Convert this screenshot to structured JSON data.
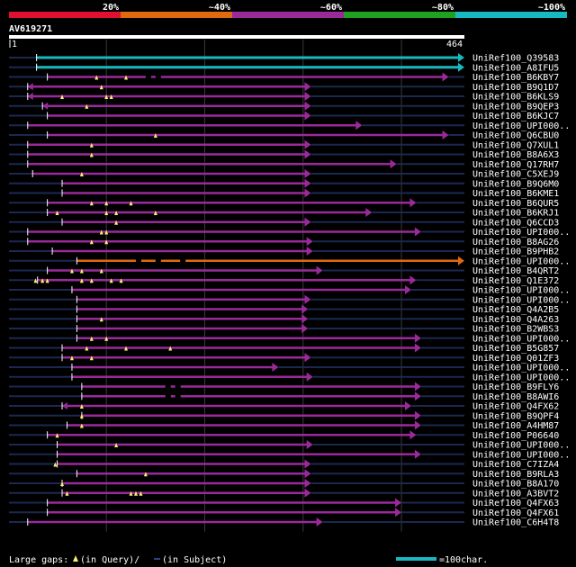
{
  "chart_data": {
    "type": "alignment",
    "query_id": "AV619271",
    "query_start": "1",
    "query_end": "464",
    "query_length": 464,
    "identity_legend": [
      {
        "label": "20%",
        "color": "#e01030"
      },
      {
        "label": "~40%",
        "color": "#e06a10"
      },
      {
        "label": "~60%",
        "color": "#9a2a9a"
      },
      {
        "label": "~80%",
        "color": "#20a020"
      },
      {
        "label": "~100%",
        "color": "#18b8c0"
      }
    ],
    "hits": [
      {
        "name": "UniRef100_Q39583",
        "start": 29,
        "end": 464,
        "color": "#18b8c0",
        "arrow_left": false,
        "gaps": [],
        "sgaps": []
      },
      {
        "name": "UniRef100_A8IFU5",
        "start": 29,
        "end": 464,
        "color": "#18b8c0",
        "arrow_left": false,
        "gaps": [],
        "sgaps": []
      },
      {
        "name": "UniRef100_B6KBY7",
        "start": 40,
        "end": 448,
        "color": "#9a2a9a",
        "arrow_left": false,
        "gaps": [
          90,
          120
        ],
        "sgaps": [
          140,
          150
        ]
      },
      {
        "name": "UniRef100_B9Q1D7",
        "start": 20,
        "end": 308,
        "color": "#9a2a9a",
        "arrow_left": true,
        "gaps": [
          95
        ],
        "sgaps": []
      },
      {
        "name": "UniRef100_B6KLS9",
        "start": 20,
        "end": 308,
        "color": "#9a2a9a",
        "arrow_left": true,
        "gaps": [
          55,
          100,
          105
        ],
        "sgaps": []
      },
      {
        "name": "UniRef100_B9QEP3",
        "start": 35,
        "end": 308,
        "color": "#9a2a9a",
        "arrow_left": true,
        "gaps": [
          80
        ],
        "sgaps": []
      },
      {
        "name": "UniRef100_B6KJC7",
        "start": 40,
        "end": 308,
        "color": "#9a2a9a",
        "arrow_left": false,
        "gaps": [],
        "sgaps": []
      },
      {
        "name": "UniRef100_UPI000..",
        "start": 20,
        "end": 360,
        "color": "#9a2a9a",
        "arrow_left": false,
        "gaps": [],
        "sgaps": []
      },
      {
        "name": "UniRef100_Q6CBU0",
        "start": 40,
        "end": 448,
        "color": "#9a2a9a",
        "arrow_left": false,
        "gaps": [
          150
        ],
        "sgaps": []
      },
      {
        "name": "UniRef100_Q7XUL1",
        "start": 20,
        "end": 308,
        "color": "#9a2a9a",
        "arrow_left": false,
        "gaps": [
          85
        ],
        "sgaps": []
      },
      {
        "name": "UniRef100_B8A6X3",
        "start": 20,
        "end": 308,
        "color": "#9a2a9a",
        "arrow_left": false,
        "gaps": [
          85
        ],
        "sgaps": []
      },
      {
        "name": "UniRef100_Q17RH7",
        "start": 20,
        "end": 395,
        "color": "#9a2a9a",
        "arrow_left": false,
        "gaps": [],
        "sgaps": []
      },
      {
        "name": "UniRef100_C5XEJ9",
        "start": 25,
        "end": 308,
        "color": "#9a2a9a",
        "arrow_left": false,
        "gaps": [
          75
        ],
        "sgaps": []
      },
      {
        "name": "UniRef100_B9Q6M0",
        "start": 55,
        "end": 308,
        "color": "#9a2a9a",
        "arrow_left": false,
        "gaps": [],
        "sgaps": []
      },
      {
        "name": "UniRef100_B6KME1",
        "start": 55,
        "end": 308,
        "color": "#9a2a9a",
        "arrow_left": false,
        "gaps": [],
        "sgaps": []
      },
      {
        "name": "UniRef100_B6QUR5",
        "start": 40,
        "end": 415,
        "color": "#9a2a9a",
        "arrow_left": false,
        "gaps": [
          85,
          100,
          125
        ],
        "sgaps": []
      },
      {
        "name": "UniRef100_B6KRJ1",
        "start": 40,
        "end": 370,
        "color": "#9a2a9a",
        "arrow_left": false,
        "gaps": [
          50,
          100,
          110,
          150
        ],
        "sgaps": []
      },
      {
        "name": "UniRef100_Q6CCD3",
        "start": 55,
        "end": 308,
        "color": "#9a2a9a",
        "arrow_left": false,
        "gaps": [
          110
        ],
        "sgaps": []
      },
      {
        "name": "UniRef100_UPI000..",
        "start": 20,
        "end": 420,
        "color": "#9a2a9a",
        "arrow_left": false,
        "gaps": [
          95,
          100
        ],
        "sgaps": []
      },
      {
        "name": "UniRef100_B8AG26",
        "start": 20,
        "end": 310,
        "color": "#9a2a9a",
        "arrow_left": false,
        "gaps": [
          85,
          100
        ],
        "sgaps": []
      },
      {
        "name": "UniRef100_B9PHB2",
        "start": 45,
        "end": 310,
        "color": "#9a2a9a",
        "arrow_left": false,
        "gaps": [],
        "sgaps": []
      },
      {
        "name": "UniRef100_UPI000..",
        "start": 70,
        "end": 464,
        "color": "#e06a10",
        "arrow_left": false,
        "gaps": [],
        "sgaps": [
          130,
          150,
          175
        ]
      },
      {
        "name": "UniRef100_B4QRT2",
        "start": 40,
        "end": 320,
        "color": "#9a2a9a",
        "arrow_left": false,
        "gaps": [
          65,
          75,
          95
        ],
        "sgaps": []
      },
      {
        "name": "UniRef100_Q1E372",
        "start": 30,
        "end": 415,
        "color": "#9a2a9a",
        "arrow_left": false,
        "gaps": [
          28,
          35,
          40,
          75,
          85,
          105,
          115
        ],
        "sgaps": []
      },
      {
        "name": "UniRef100_UPI000..",
        "start": 65,
        "end": 410,
        "color": "#9a2a9a",
        "arrow_left": false,
        "gaps": [],
        "sgaps": []
      },
      {
        "name": "UniRef100_UPI000..",
        "start": 70,
        "end": 308,
        "color": "#9a2a9a",
        "arrow_left": false,
        "gaps": [],
        "sgaps": []
      },
      {
        "name": "UniRef100_Q4A2B5",
        "start": 70,
        "end": 305,
        "color": "#9a2a9a",
        "arrow_left": false,
        "gaps": [],
        "sgaps": []
      },
      {
        "name": "UniRef100_Q4A263",
        "start": 70,
        "end": 305,
        "color": "#9a2a9a",
        "arrow_left": false,
        "gaps": [
          95
        ],
        "sgaps": []
      },
      {
        "name": "UniRef100_B2WBS3",
        "start": 70,
        "end": 305,
        "color": "#9a2a9a",
        "arrow_left": false,
        "gaps": [],
        "sgaps": []
      },
      {
        "name": "UniRef100_UPI000..",
        "start": 70,
        "end": 420,
        "color": "#9a2a9a",
        "arrow_left": false,
        "gaps": [
          85,
          100
        ],
        "sgaps": []
      },
      {
        "name": "UniRef100_B5G857",
        "start": 55,
        "end": 420,
        "color": "#9a2a9a",
        "arrow_left": false,
        "gaps": [
          80,
          120,
          165
        ],
        "sgaps": []
      },
      {
        "name": "UniRef100_Q01ZF3",
        "start": 55,
        "end": 308,
        "color": "#9a2a9a",
        "arrow_left": false,
        "gaps": [
          65,
          85
        ],
        "sgaps": []
      },
      {
        "name": "UniRef100_UPI000..",
        "start": 65,
        "end": 275,
        "color": "#9a2a9a",
        "arrow_left": false,
        "gaps": [],
        "sgaps": []
      },
      {
        "name": "UniRef100_UPI000..",
        "start": 65,
        "end": 310,
        "color": "#9a2a9a",
        "arrow_left": false,
        "gaps": [],
        "sgaps": []
      },
      {
        "name": "UniRef100_B9FLY6",
        "start": 75,
        "end": 420,
        "color": "#9a2a9a",
        "arrow_left": false,
        "gaps": [],
        "sgaps": [
          160,
          170
        ]
      },
      {
        "name": "UniRef100_B8AWI6",
        "start": 75,
        "end": 420,
        "color": "#9a2a9a",
        "arrow_left": false,
        "gaps": [],
        "sgaps": [
          160,
          170
        ]
      },
      {
        "name": "UniRef100_Q4FX62",
        "start": 55,
        "end": 410,
        "color": "#9a2a9a",
        "arrow_left": true,
        "gaps": [
          75
        ],
        "sgaps": []
      },
      {
        "name": "UniRef100_B9QPF4",
        "start": 75,
        "end": 420,
        "color": "#9a2a9a",
        "arrow_left": false,
        "gaps": [
          75
        ],
        "sgaps": []
      },
      {
        "name": "UniRef100_A4HM87",
        "start": 60,
        "end": 420,
        "color": "#9a2a9a",
        "arrow_left": false,
        "gaps": [
          75
        ],
        "sgaps": []
      },
      {
        "name": "UniRef100_P06640",
        "start": 40,
        "end": 415,
        "color": "#9a2a9a",
        "arrow_left": false,
        "gaps": [
          50
        ],
        "sgaps": []
      },
      {
        "name": "UniRef100_UPI000..",
        "start": 50,
        "end": 310,
        "color": "#9a2a9a",
        "arrow_left": false,
        "gaps": [
          110
        ],
        "sgaps": []
      },
      {
        "name": "UniRef100_UPI000..",
        "start": 50,
        "end": 420,
        "color": "#9a2a9a",
        "arrow_left": false,
        "gaps": [],
        "sgaps": []
      },
      {
        "name": "UniRef100_C7IZA4",
        "start": 50,
        "end": 308,
        "color": "#9a2a9a",
        "arrow_left": false,
        "gaps": [
          48
        ],
        "sgaps": []
      },
      {
        "name": "UniRef100_B9RLA3",
        "start": 70,
        "end": 308,
        "color": "#9a2a9a",
        "arrow_left": false,
        "gaps": [
          140
        ],
        "sgaps": []
      },
      {
        "name": "UniRef100_B8A170",
        "start": 55,
        "end": 308,
        "color": "#9a2a9a",
        "arrow_left": false,
        "gaps": [
          55
        ],
        "sgaps": []
      },
      {
        "name": "UniRef100_A3BVT2",
        "start": 55,
        "end": 308,
        "color": "#9a2a9a",
        "arrow_left": false,
        "gaps": [
          60,
          125,
          130,
          135
        ],
        "sgaps": []
      },
      {
        "name": "UniRef100_Q4FX63",
        "start": 40,
        "end": 400,
        "color": "#9a2a9a",
        "arrow_left": false,
        "gaps": [],
        "sgaps": []
      },
      {
        "name": "UniRef100_Q4FX61",
        "start": 40,
        "end": 400,
        "color": "#9a2a9a",
        "arrow_left": false,
        "gaps": [],
        "sgaps": []
      },
      {
        "name": "UniRef100_C6H4T8",
        "start": 20,
        "end": 320,
        "color": "#9a2a9a",
        "arrow_left": false,
        "gaps": [],
        "sgaps": []
      }
    ],
    "footer": {
      "label": "Large gaps:",
      "query_gap": "(in Query)/",
      "subject_gap": "(in Subject)",
      "scale_label": "=100char.",
      "scale_color": "#18b8c0"
    }
  }
}
